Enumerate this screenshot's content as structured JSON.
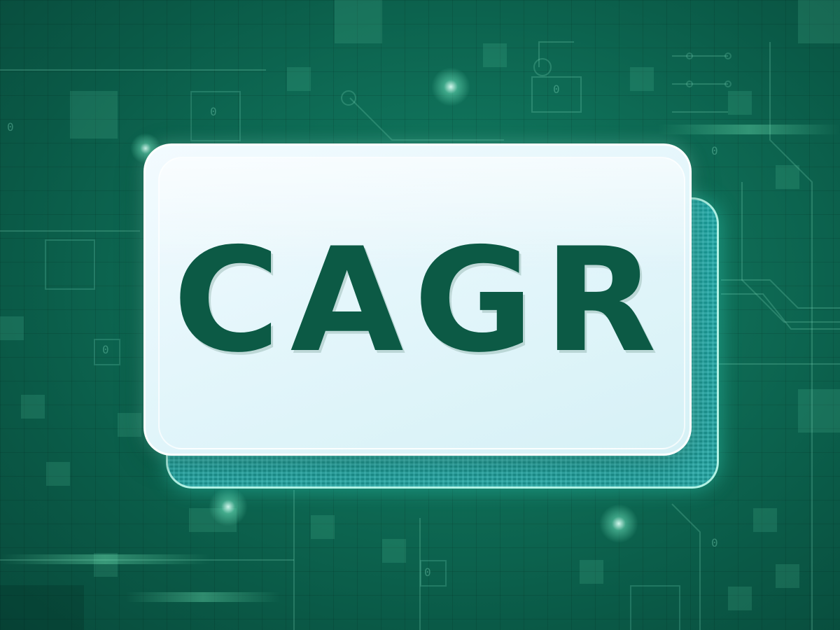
{
  "card": {
    "headline": "CAGR"
  },
  "colors": {
    "background": "#0f6f58",
    "headline": "#0c5a45",
    "card_front": "#e4f6fb",
    "card_back": "#1a9a98"
  },
  "background_glyphs": [
    "0",
    "0",
    "0",
    "0",
    "0",
    "0",
    "0"
  ]
}
